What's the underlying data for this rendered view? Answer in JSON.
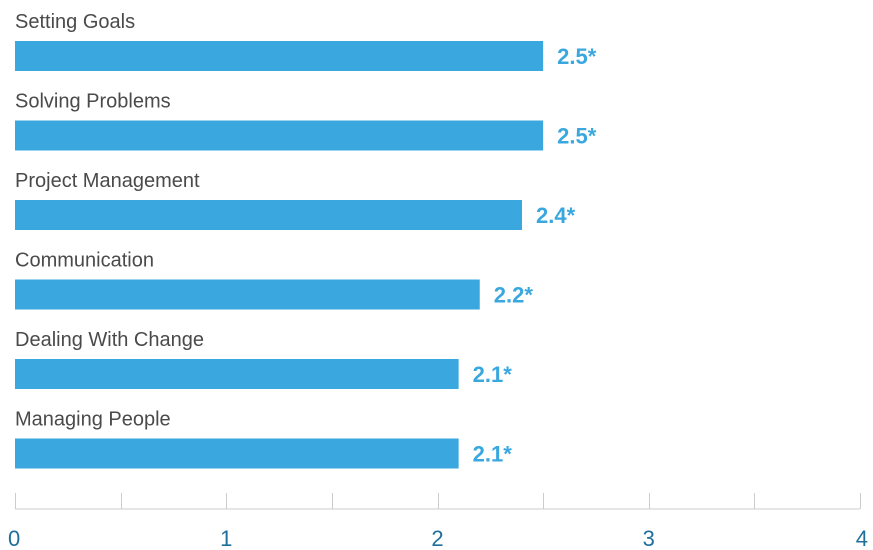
{
  "chart_data": {
    "type": "bar",
    "orientation": "horizontal",
    "categories": [
      "Setting Goals",
      "Solving Problems",
      "Project Management",
      "Communication",
      "Dealing With Change",
      "Managing People"
    ],
    "values": [
      2.5,
      2.5,
      2.4,
      2.2,
      2.1,
      2.1
    ],
    "value_labels": [
      "2.5*",
      "2.5*",
      "2.4*",
      "2.2*",
      "2.1*",
      "2.1*"
    ],
    "title": "",
    "xlabel": "",
    "ylabel": "",
    "xlim": [
      0,
      4
    ],
    "x_ticks": [
      "0",
      "1",
      "2",
      "3",
      "4"
    ],
    "grid": false,
    "legend": "none",
    "colors": {
      "bar": "#3aa8df",
      "value_label": "#3aa8df",
      "category_label": "#4a4a4a",
      "tick_label": "#1f6f9b",
      "axis": "#cccccc"
    }
  }
}
